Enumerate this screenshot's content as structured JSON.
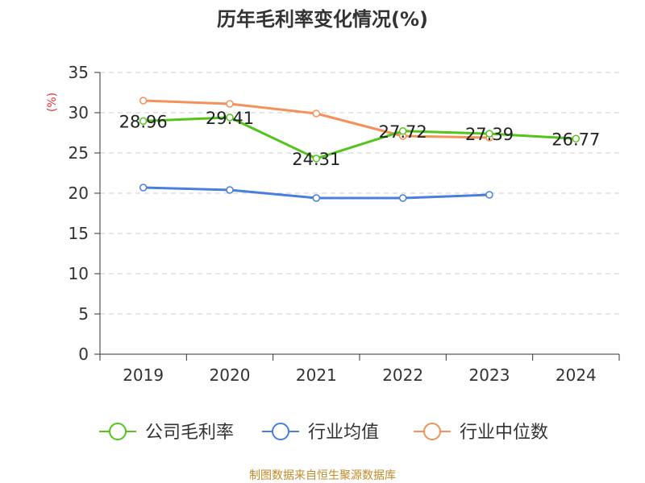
{
  "chart_data": {
    "type": "line",
    "title": "历年毛利率变化情况(%)",
    "ylabel": "(%)",
    "xlabel": "",
    "categories": [
      "2019",
      "2020",
      "2021",
      "2022",
      "2023",
      "2024"
    ],
    "ylim": [
      0,
      35
    ],
    "yticks": [
      0,
      5,
      10,
      15,
      20,
      25,
      30,
      35
    ],
    "grid": true,
    "legend_position": "bottom",
    "series": [
      {
        "name": "公司毛利率",
        "color": "#52c41a",
        "values": [
          28.96,
          29.41,
          24.31,
          27.72,
          27.39,
          26.77
        ],
        "labels": [
          "28.96",
          "29.41",
          "24.31",
          "27.72",
          "27.39",
          "26.77"
        ]
      },
      {
        "name": "行业均值",
        "color": "#4a7ede",
        "values": [
          20.7,
          20.4,
          19.4,
          19.4,
          19.8,
          null
        ]
      },
      {
        "name": "行业中位数",
        "color": "#f6905a",
        "values": [
          31.5,
          31.1,
          29.9,
          27.1,
          26.9,
          null
        ]
      }
    ]
  },
  "source_note": "制图数据来自恒生聚源数据库"
}
